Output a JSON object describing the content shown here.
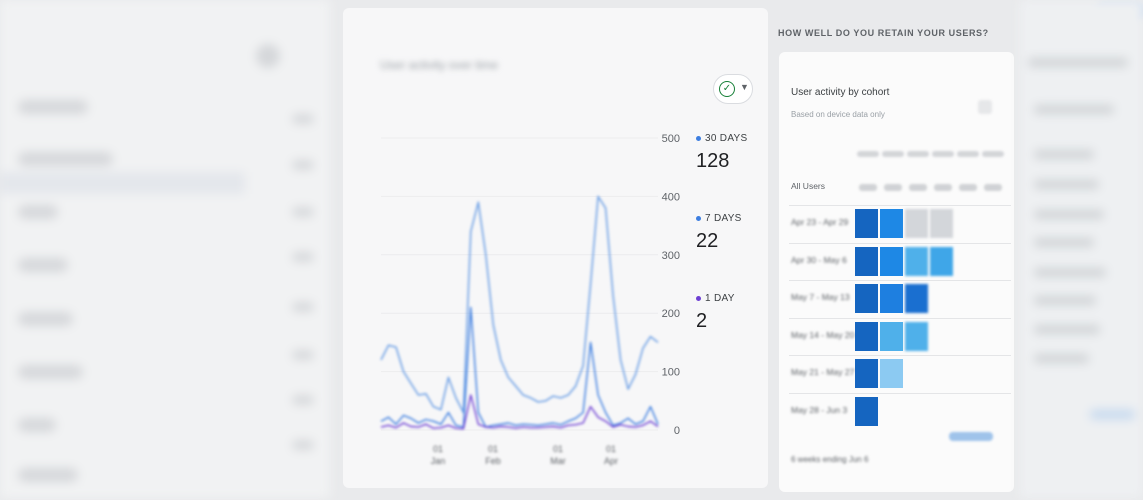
{
  "report": {
    "title": "User activity over time",
    "filter_icon": "check-circle-icon"
  },
  "chart_data": {
    "type": "line",
    "title": "User activity over time",
    "x_ticks": [
      "01 Jan",
      "01 Feb",
      "01 Mar",
      "01 Apr"
    ],
    "y_ticks": [
      0,
      100,
      200,
      300,
      400,
      500
    ],
    "ylim": [
      0,
      500
    ],
    "y_axis_position": "right",
    "grid": true,
    "legend_position": "right",
    "series": [
      {
        "name": "30 DAYS",
        "color": "#74a4e6",
        "values": [
          120,
          145,
          142,
          100,
          80,
          60,
          62,
          40,
          35,
          90,
          55,
          30,
          340,
          390,
          300,
          180,
          120,
          90,
          75,
          60,
          55,
          48,
          50,
          58,
          55,
          60,
          75,
          110,
          250,
          400,
          380,
          230,
          120,
          70,
          95,
          140,
          160,
          150
        ]
      },
      {
        "name": "7 DAYS",
        "color": "#3d7ee0",
        "values": [
          15,
          22,
          10,
          25,
          20,
          12,
          18,
          15,
          10,
          30,
          8,
          5,
          210,
          30,
          5,
          8,
          10,
          12,
          8,
          10,
          9,
          8,
          10,
          12,
          9,
          15,
          20,
          30,
          150,
          60,
          30,
          8,
          12,
          20,
          10,
          15,
          40,
          10
        ]
      },
      {
        "name": "1 DAY",
        "color": "#6d3fd3",
        "values": [
          5,
          8,
          4,
          12,
          6,
          5,
          10,
          3,
          4,
          8,
          3,
          2,
          60,
          10,
          5,
          4,
          6,
          5,
          3,
          5,
          4,
          4,
          5,
          6,
          4,
          8,
          9,
          12,
          40,
          22,
          15,
          5,
          9,
          6,
          5,
          8,
          15,
          6
        ]
      }
    ],
    "legend": [
      {
        "label": "30 DAYS",
        "value": "128",
        "color": "#3d7ee0"
      },
      {
        "label": "7 DAYS",
        "value": "22",
        "color": "#3d7ee0"
      },
      {
        "label": "1 DAY",
        "value": "2",
        "color": "#6d3fd3"
      }
    ]
  },
  "retention": {
    "header": "HOW WELL DO YOU RETAIN YOUR USERS?",
    "title": "User activity by cohort",
    "subtitle": "Based on device data only",
    "all_users_label": "All Users",
    "rows": [
      {
        "label": "Apr 23 - Apr 29",
        "cells": [
          "#1565c0",
          "#1e88e5",
          "#d3d6da",
          "#d3d6da"
        ]
      },
      {
        "label": "Apr 30 - May 6",
        "cells": [
          "#1565c0",
          "#1e88e5",
          "#4fb0ea",
          "#3fa6e8"
        ]
      },
      {
        "label": "May 7 - May 13",
        "cells": [
          "#1565c0",
          "#1e7fe0",
          "#1a6fd0"
        ]
      },
      {
        "label": "May 14 - May 20",
        "cells": [
          "#1565c0",
          "#4fb0ea",
          "#4fb0ea"
        ]
      },
      {
        "label": "May 21 - May 27",
        "cells": [
          "#1565c0",
          "#8ccaf2"
        ]
      },
      {
        "label": "May 28 - Jun 3",
        "cells": [
          "#1565c0"
        ]
      }
    ],
    "footer": "6 weeks ending Jun 6"
  }
}
